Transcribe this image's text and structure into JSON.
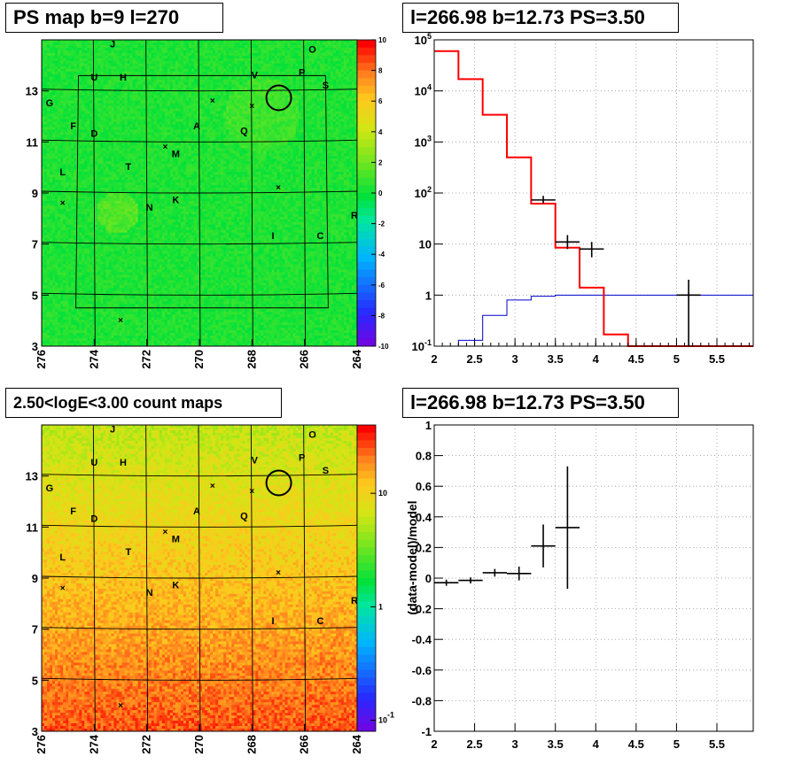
{
  "panel_titles": {
    "map1": "PS map b=9 l=270",
    "spectrum": "l=266.98 b=12.73 PS=3.50",
    "map2": "2.50<logE<3.00 count maps",
    "residual": "l=266.98 b=12.73 PS=3.50"
  },
  "colors": {
    "data": "#000000",
    "model": "#ff0000",
    "background_model": "#0000cc"
  },
  "chart_data": [
    {
      "type": "heatmap",
      "title": "PS map b=9 l=270",
      "x_range": [
        276,
        264
      ],
      "y_range": [
        3,
        15
      ],
      "x_ticks": [
        "276",
        "274",
        "272",
        "270",
        "268",
        "266",
        "264"
      ],
      "y_ticks": [
        "3",
        "5",
        "7",
        "9",
        "11",
        "13"
      ],
      "colorbar": {
        "scale": "linear",
        "range": [
          -10,
          10
        ],
        "ticks": [
          "-10",
          "-8",
          "-6",
          "-4",
          "-2",
          "0",
          "2",
          "4",
          "6",
          "8",
          "10"
        ]
      },
      "source_labels": [
        {
          "label": "J",
          "l": 273.3,
          "b": 14.7
        },
        {
          "label": "O",
          "l": 265.7,
          "b": 14.5
        },
        {
          "label": "U",
          "l": 274.0,
          "b": 13.4
        },
        {
          "label": "H",
          "l": 272.9,
          "b": 13.4
        },
        {
          "label": "V",
          "l": 267.9,
          "b": 13.5
        },
        {
          "label": "P",
          "l": 266.1,
          "b": 13.6
        },
        {
          "label": "S",
          "l": 265.2,
          "b": 13.1
        },
        {
          "label": "G",
          "l": 275.7,
          "b": 12.4
        },
        {
          "label": "F",
          "l": 274.8,
          "b": 11.5
        },
        {
          "label": "D",
          "l": 274.0,
          "b": 11.2
        },
        {
          "label": "A",
          "l": 270.1,
          "b": 11.5
        },
        {
          "label": "Q",
          "l": 268.3,
          "b": 11.3
        },
        {
          "label": "M",
          "l": 270.9,
          "b": 10.4
        },
        {
          "label": "T",
          "l": 272.7,
          "b": 9.9
        },
        {
          "label": "L",
          "l": 275.2,
          "b": 9.7
        },
        {
          "label": "N",
          "l": 271.9,
          "b": 8.3
        },
        {
          "label": "K",
          "l": 270.9,
          "b": 8.6
        },
        {
          "label": "R",
          "l": 264.1,
          "b": 8.0
        },
        {
          "label": "I",
          "l": 267.2,
          "b": 7.2
        },
        {
          "label": "C",
          "l": 265.4,
          "b": 7.2
        }
      ],
      "crosses": [
        [
          269.5,
          12.6
        ],
        [
          268.0,
          12.4
        ],
        [
          271.3,
          10.8
        ],
        [
          267.0,
          9.2
        ],
        [
          275.2,
          8.6
        ],
        [
          273.0,
          4.0
        ]
      ],
      "circle": {
        "l": 266.98,
        "b": 12.73
      }
    },
    {
      "type": "line",
      "title": "l=266.98 b=12.73 PS=3.50",
      "x_range": [
        2,
        5.95
      ],
      "y_scale": "log",
      "y_range": [
        0.1,
        100000
      ],
      "x_ticks": [
        "2",
        "2.5",
        "3",
        "3.5",
        "4",
        "4.5",
        "5",
        "5.5"
      ],
      "y_ticks": [
        {
          "value": 0.1,
          "label": "10",
          "sup": "-1"
        },
        {
          "value": 1,
          "label": "1",
          "sup": ""
        },
        {
          "value": 10,
          "label": "10",
          "sup": ""
        },
        {
          "value": 100,
          "label": "10",
          "sup": "2"
        },
        {
          "value": 1000,
          "label": "10",
          "sup": "3"
        },
        {
          "value": 10000,
          "label": "10",
          "sup": "4"
        },
        {
          "value": 100000,
          "label": "10",
          "sup": "5"
        }
      ],
      "bin_edges": [
        2.0,
        2.3,
        2.6,
        2.9,
        3.2,
        3.5,
        3.8,
        4.1,
        4.4,
        4.7,
        5.0,
        5.3,
        5.6,
        5.95
      ],
      "series": [
        {
          "values": [
            60000,
            17000,
            3400,
            500,
            62,
            8.5,
            1.4,
            0.17,
            0.1,
            0.1,
            0.1,
            0.1,
            0.1
          ]
        },
        {
          "values": [
            60000,
            17000,
            3400,
            500,
            62,
            8.5,
            1.4,
            0.17,
            0.1,
            0.1,
            0.1,
            0.1,
            0.1
          ]
        },
        {
          "values": [
            0.1,
            0.13,
            0.4,
            0.8,
            0.95,
            1.0,
            1.0,
            1.0,
            1.0,
            1.0,
            1.0,
            1.0,
            1.0
          ]
        }
      ],
      "data_points": [
        {
          "x": 3.35,
          "y": 73,
          "xerr": 0.15,
          "ylo": 63,
          "yhi": 88
        },
        {
          "x": 3.65,
          "y": 11,
          "xerr": 0.15,
          "ylo": 8,
          "yhi": 15
        },
        {
          "x": 3.95,
          "y": 8,
          "xerr": 0.15,
          "ylo": 5.5,
          "yhi": 11
        },
        {
          "x": 5.15,
          "y": 1,
          "xerr": 0.15,
          "ylo": 0.1,
          "yhi": 2
        }
      ]
    },
    {
      "type": "heatmap",
      "title": "2.50<logE<3.00 count maps",
      "x_range": [
        276,
        264
      ],
      "y_range": [
        3,
        15
      ],
      "x_ticks": [
        "276",
        "274",
        "272",
        "270",
        "268",
        "266",
        "264"
      ],
      "y_ticks": [
        "3",
        "5",
        "7",
        "9",
        "11",
        "13"
      ],
      "colorbar": {
        "scale": "log",
        "range": [
          0.08,
          40
        ],
        "ticks": [
          {
            "value": 0.1,
            "label": "10",
            "sup": "-1"
          },
          {
            "value": 1,
            "label": "1",
            "sup": ""
          },
          {
            "value": 10,
            "label": "10",
            "sup": ""
          }
        ]
      }
    },
    {
      "type": "scatter",
      "title": "l=266.98 b=12.73 PS=3.50",
      "ylabel": "(data-model)/model",
      "x_range": [
        2,
        5.95
      ],
      "y_range": [
        -1,
        1
      ],
      "x_ticks": [
        "2",
        "2.5",
        "3",
        "3.5",
        "4",
        "4.5",
        "5",
        "5.5"
      ],
      "y_ticks": [
        "-1",
        "-0.8",
        "-0.6",
        "-0.4",
        "-0.2",
        "0",
        "0.2",
        "0.4",
        "0.6",
        "0.8",
        "1"
      ],
      "points": [
        {
          "x": 2.15,
          "y": -0.03,
          "xerr": 0.15,
          "yerr": 0.02
        },
        {
          "x": 2.45,
          "y": -0.015,
          "xerr": 0.15,
          "yerr": 0.02
        },
        {
          "x": 2.75,
          "y": 0.035,
          "xerr": 0.15,
          "yerr": 0.025
        },
        {
          "x": 3.05,
          "y": 0.03,
          "xerr": 0.15,
          "yerr": 0.045
        },
        {
          "x": 3.35,
          "y": 0.21,
          "xerr": 0.15,
          "yerr": 0.14
        },
        {
          "x": 3.65,
          "y": 0.33,
          "xerr": 0.15,
          "yerr": 0.4
        }
      ]
    }
  ]
}
